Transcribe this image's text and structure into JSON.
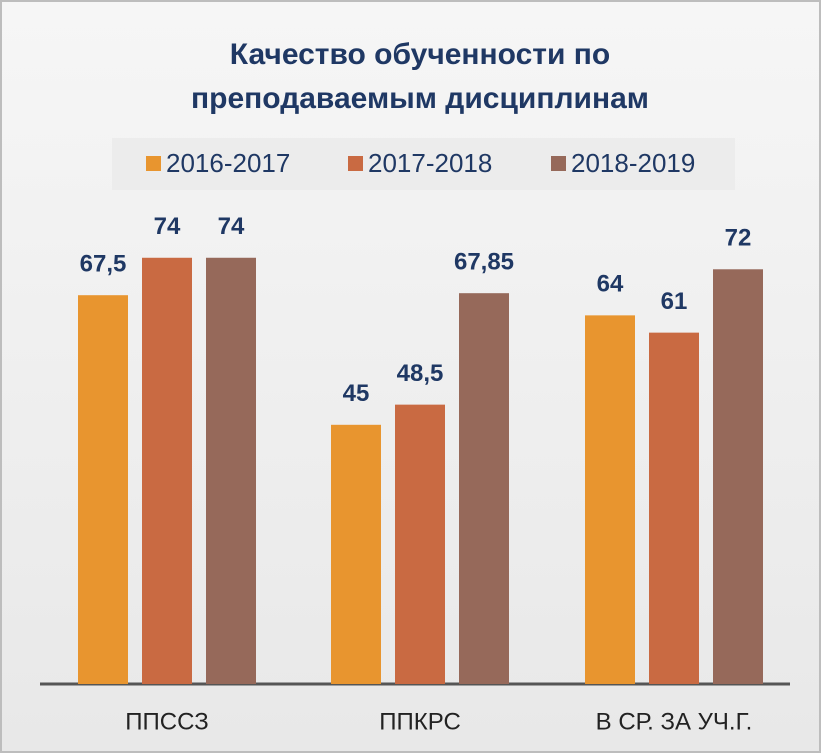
{
  "chart_data": {
    "type": "bar",
    "title": [
      "Качество обученности по",
      "преподаваемым дисциплинам"
    ],
    "categories": [
      "ППССЗ",
      "ППКРС",
      "В СР. ЗА УЧ.Г."
    ],
    "series": [
      {
        "name": "2016-2017",
        "color": "#E8952F",
        "values": [
          67.5,
          45,
          64
        ],
        "value_labels": [
          "67,5",
          "45",
          "64"
        ]
      },
      {
        "name": "2017-2018",
        "color": "#C96A42",
        "values": [
          74,
          48.5,
          61
        ],
        "value_labels": [
          "74",
          "48,5",
          "61"
        ]
      },
      {
        "name": "2018-2019",
        "color": "#96695A",
        "values": [
          74,
          67.85,
          72
        ],
        "value_labels": [
          "74",
          "67,85",
          "72"
        ]
      }
    ]
  }
}
